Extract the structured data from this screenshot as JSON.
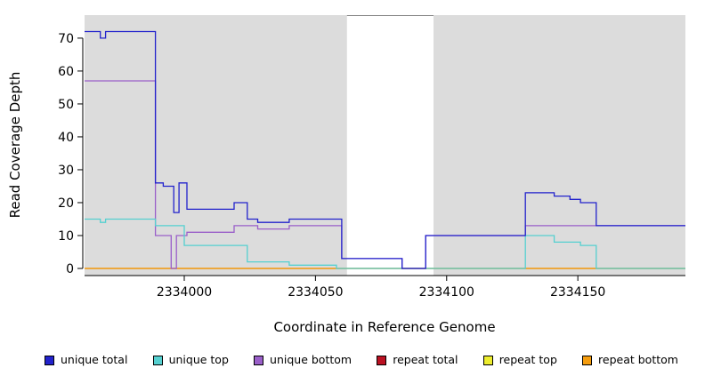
{
  "figure": {
    "background": "#ffffff",
    "panel_background": "#dcdcdc"
  },
  "chart_data": {
    "type": "line",
    "step": true,
    "title": "",
    "xlabel": "Coordinate in Reference Genome",
    "ylabel": "Read Coverage Depth",
    "xlim": [
      2333962,
      2334191
    ],
    "ylim": [
      0,
      77
    ],
    "x_ticks": [
      2334000,
      2334050,
      2334100,
      2334150
    ],
    "y_ticks": [
      0,
      10,
      20,
      30,
      40,
      50,
      60,
      70
    ],
    "grid": false,
    "legend_position": "bottom",
    "shaded_regions": [
      {
        "x0": 2333962,
        "x1": 2334062,
        "color": "#dcdcdc"
      },
      {
        "x0": 2334095,
        "x1": 2334191,
        "color": "#dcdcdc"
      }
    ],
    "draw_order": [
      "repeat total",
      "repeat top",
      "repeat bottom",
      "unique bottom",
      "unique top",
      "unique total"
    ],
    "series": [
      {
        "name": "unique total",
        "color": "#2222cc",
        "points": [
          [
            2333962,
            72
          ],
          [
            2333968,
            70
          ],
          [
            2333970,
            72
          ],
          [
            2333989,
            26
          ],
          [
            2333992,
            25
          ],
          [
            2333996,
            17
          ],
          [
            2333998,
            26
          ],
          [
            2334001,
            18
          ],
          [
            2334019,
            20
          ],
          [
            2334024,
            15
          ],
          [
            2334028,
            14
          ],
          [
            2334040,
            15
          ],
          [
            2334060,
            3
          ],
          [
            2334083,
            0
          ],
          [
            2334092,
            10
          ],
          [
            2334130,
            23
          ],
          [
            2334141,
            22
          ],
          [
            2334147,
            21
          ],
          [
            2334151,
            20
          ],
          [
            2334157,
            13
          ],
          [
            2334191,
            13
          ]
        ]
      },
      {
        "name": "unique top",
        "color": "#55d0d0",
        "points": [
          [
            2333962,
            15
          ],
          [
            2333968,
            14
          ],
          [
            2333970,
            15
          ],
          [
            2333989,
            13
          ],
          [
            2334000,
            7
          ],
          [
            2334024,
            2
          ],
          [
            2334040,
            1
          ],
          [
            2334058,
            0
          ],
          [
            2334130,
            10
          ],
          [
            2334141,
            8
          ],
          [
            2334151,
            7
          ],
          [
            2334157,
            0
          ],
          [
            2334191,
            0
          ]
        ]
      },
      {
        "name": "unique bottom",
        "color": "#9a5fc9",
        "points": [
          [
            2333962,
            57
          ],
          [
            2333989,
            10
          ],
          [
            2333995,
            0
          ],
          [
            2333997,
            10
          ],
          [
            2334001,
            11
          ],
          [
            2334019,
            13
          ],
          [
            2334028,
            12
          ],
          [
            2334040,
            13
          ],
          [
            2334060,
            3
          ],
          [
            2334083,
            0
          ],
          [
            2334092,
            10
          ],
          [
            2334130,
            13
          ],
          [
            2334191,
            13
          ]
        ]
      },
      {
        "name": "repeat total",
        "color": "#bb1122",
        "points": [
          [
            2333962,
            0
          ],
          [
            2334191,
            0
          ]
        ]
      },
      {
        "name": "repeat top",
        "color": "#eded2e",
        "points": [
          [
            2333962,
            0
          ],
          [
            2334191,
            0
          ]
        ]
      },
      {
        "name": "repeat bottom",
        "color": "#f59d0f",
        "points": [
          [
            2333962,
            0
          ],
          [
            2334191,
            0
          ]
        ]
      }
    ],
    "legend": [
      {
        "label": "unique total",
        "color": "#2222cc"
      },
      {
        "label": "unique top",
        "color": "#55d0d0"
      },
      {
        "label": "unique bottom",
        "color": "#9a5fc9"
      },
      {
        "label": "repeat total",
        "color": "#bb1122"
      },
      {
        "label": "repeat top",
        "color": "#eded2e"
      },
      {
        "label": "repeat bottom",
        "color": "#f59d0f"
      }
    ]
  }
}
